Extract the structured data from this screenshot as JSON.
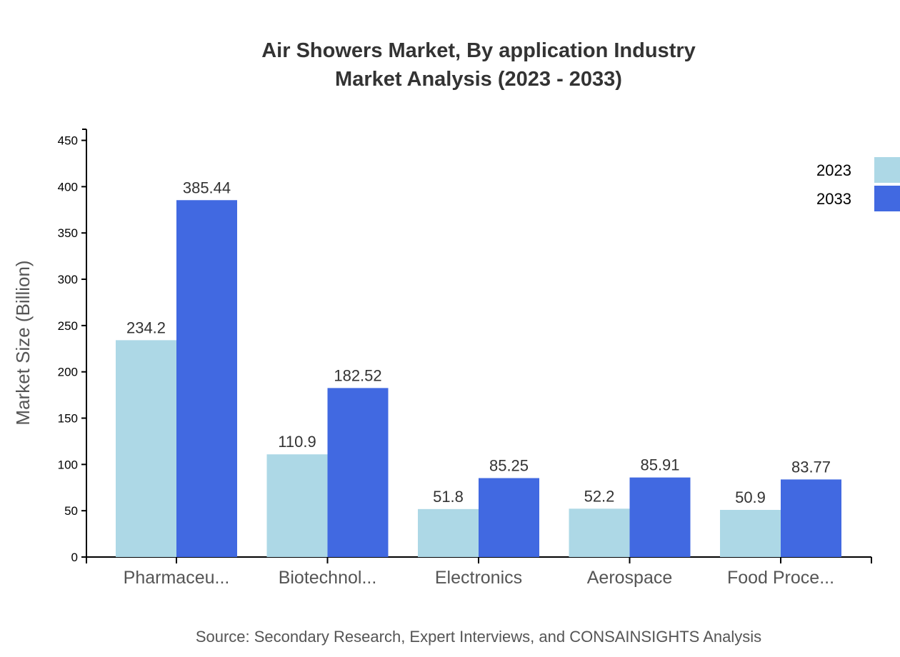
{
  "chart_data": {
    "type": "bar",
    "title_lines": [
      "Air Showers Market, By application Industry",
      "Market Analysis (2023 - 2033)"
    ],
    "xlabel": "",
    "ylabel": "Market Size (Billion)",
    "ylim": [
      0,
      462
    ],
    "yticks": [
      0,
      50,
      100,
      150,
      200,
      250,
      300,
      350,
      400,
      450
    ],
    "categories": [
      "Pharmaceu...",
      "Biotechnol...",
      "Electronics",
      "Aerospace",
      "Food Proce..."
    ],
    "series": [
      {
        "name": "2023",
        "color": "#ADD8E6",
        "values": [
          234.2,
          110.9,
          51.8,
          52.2,
          50.9
        ]
      },
      {
        "name": "2033",
        "color": "#4169E1",
        "values": [
          385.44,
          182.52,
          85.25,
          85.91,
          83.77
        ]
      }
    ],
    "legend_position": "top-right",
    "grid": false,
    "source": "Source: Secondary Research, Expert Interviews, and CONSAINSIGHTS Analysis"
  }
}
